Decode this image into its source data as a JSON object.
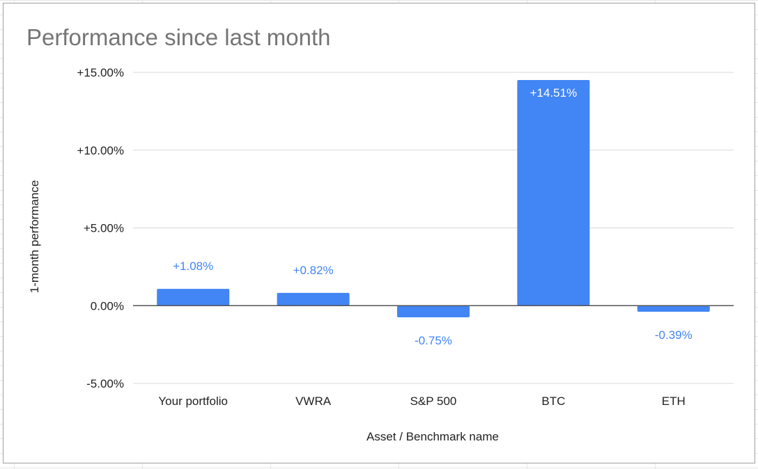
{
  "chart_data": {
    "type": "bar",
    "title": "Performance since last month",
    "xlabel": "Asset / Benchmark name",
    "ylabel": "1-month performance",
    "categories": [
      "Your portfolio",
      "VWRA",
      "S&P 500",
      "BTC",
      "ETH"
    ],
    "values": [
      1.08,
      0.82,
      -0.75,
      14.51,
      -0.39
    ],
    "data_labels": [
      "+1.08%",
      "+0.82%",
      "-0.75%",
      "+14.51%",
      "-0.39%"
    ],
    "ylim": [
      -5,
      15
    ],
    "yticks": [
      {
        "value": 15,
        "label": "+15.00%"
      },
      {
        "value": 10,
        "label": "+10.00%"
      },
      {
        "value": 5,
        "label": "+5.00%"
      },
      {
        "value": 0,
        "label": "0.00%"
      },
      {
        "value": -5,
        "label": "-5.00%"
      }
    ],
    "grid": true,
    "legend": "none",
    "colors": {
      "bar": "#4285f4",
      "label_outside": "#4285f4",
      "label_inside": "#ffffff",
      "grid": "#d9d9d9",
      "zero_line": "#555555"
    }
  }
}
